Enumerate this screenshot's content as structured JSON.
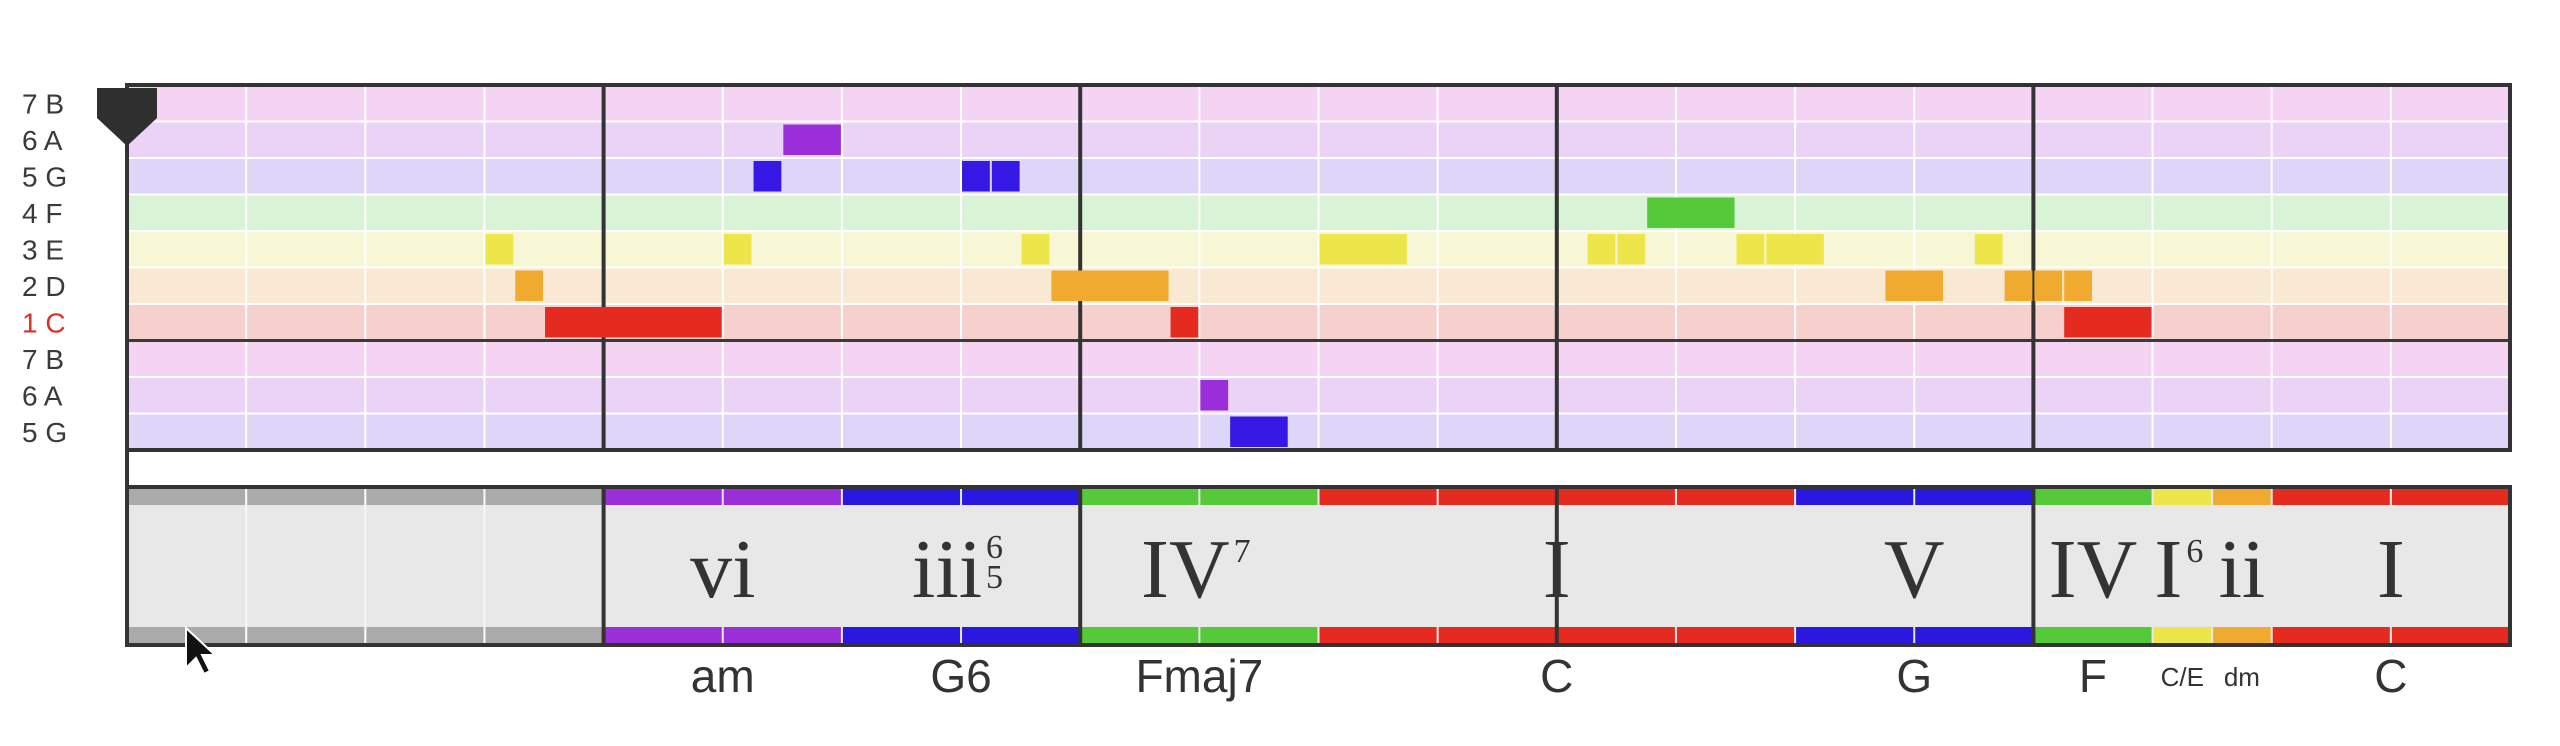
{
  "rows": [
    {
      "label": "7 B",
      "color": "#f5d3f3",
      "tonic": false
    },
    {
      "label": "6 A",
      "color": "#ebd3f6",
      "tonic": false
    },
    {
      "label": "5 G",
      "color": "#ddd6f8",
      "tonic": false
    },
    {
      "label": "4 F",
      "color": "#d8f3d6",
      "tonic": false
    },
    {
      "label": "3 E",
      "color": "#f8f7d5",
      "tonic": false
    },
    {
      "label": "2 D",
      "color": "#f9e9d3",
      "tonic": false
    },
    {
      "label": "1 C",
      "color": "#f6d0cd",
      "tonic": true
    },
    {
      "label": "7 B",
      "color": "#f5d3f3",
      "tonic": false
    },
    {
      "label": "6 A",
      "color": "#ebd3f6",
      "tonic": false
    },
    {
      "label": "5 G",
      "color": "#ddd6f8",
      "tonic": false
    }
  ],
  "timeline": {
    "measures": 5,
    "beats_per_measure": 4
  },
  "note_colors": {
    "1": "#e52b20",
    "2": "#f0aa30",
    "3": "#ece64a",
    "4": "#55c93a",
    "5": "#3518e4",
    "6": "#9a2ed8",
    "7": "#d24ad0"
  },
  "notes": [
    {
      "row": 4,
      "start": 3.0,
      "dur": 0.25,
      "degree": 3
    },
    {
      "row": 5,
      "start": 3.25,
      "dur": 0.25,
      "degree": 2
    },
    {
      "row": 6,
      "start": 3.5,
      "dur": 1.5,
      "degree": 1
    },
    {
      "row": 4,
      "start": 5.0,
      "dur": 0.25,
      "degree": 3
    },
    {
      "row": 2,
      "start": 5.25,
      "dur": 0.25,
      "degree": 5
    },
    {
      "row": 1,
      "start": 5.5,
      "dur": 0.5,
      "degree": 6
    },
    {
      "row": 2,
      "start": 7.0,
      "dur": 0.25,
      "degree": 5
    },
    {
      "row": 2,
      "start": 7.25,
      "dur": 0.25,
      "degree": 5
    },
    {
      "row": 4,
      "start": 7.5,
      "dur": 0.25,
      "degree": 3
    },
    {
      "row": 5,
      "start": 7.75,
      "dur": 1.0,
      "degree": 2
    },
    {
      "row": 6,
      "start": 8.75,
      "dur": 0.25,
      "degree": 1
    },
    {
      "row": 8,
      "start": 9.0,
      "dur": 0.25,
      "degree": 6
    },
    {
      "row": 9,
      "start": 9.25,
      "dur": 0.5,
      "degree": 5
    },
    {
      "row": 4,
      "start": 10.0,
      "dur": 0.75,
      "degree": 3
    },
    {
      "row": 4,
      "start": 12.25,
      "dur": 0.25,
      "degree": 3
    },
    {
      "row": 4,
      "start": 12.5,
      "dur": 0.25,
      "degree": 3
    },
    {
      "row": 3,
      "start": 12.75,
      "dur": 0.75,
      "degree": 4
    },
    {
      "row": 4,
      "start": 13.5,
      "dur": 0.25,
      "degree": 3
    },
    {
      "row": 4,
      "start": 13.75,
      "dur": 0.5,
      "degree": 3
    },
    {
      "row": 5,
      "start": 14.75,
      "dur": 0.5,
      "degree": 2
    },
    {
      "row": 4,
      "start": 15.5,
      "dur": 0.25,
      "degree": 3
    },
    {
      "row": 5,
      "start": 15.75,
      "dur": 0.25,
      "degree": 2
    },
    {
      "row": 5,
      "start": 16.0,
      "dur": 0.25,
      "degree": 2
    },
    {
      "row": 5,
      "start": 16.25,
      "dur": 0.25,
      "degree": 2
    },
    {
      "row": 6,
      "start": 16.25,
      "dur": 0.75,
      "degree": 1
    }
  ],
  "chords": [
    {
      "start": 0,
      "dur": 4,
      "numeral": "",
      "sup": "",
      "name": "",
      "name_small": false,
      "color": "#aaaaaa"
    },
    {
      "start": 4,
      "dur": 2,
      "numeral": "vi",
      "sup": "",
      "name": "am",
      "name_small": false,
      "color": "#9a2ed8"
    },
    {
      "start": 6,
      "dur": 2,
      "numeral": "iii",
      "sup": "6 5",
      "name": "G6",
      "name_small": false,
      "color": "#2a18e0"
    },
    {
      "start": 8,
      "dur": 2,
      "numeral": "IV",
      "sup": "7",
      "name": "Fmaj7",
      "name_small": false,
      "color": "#55c93a"
    },
    {
      "start": 10,
      "dur": 4,
      "numeral": "I",
      "sup": "",
      "name": "C",
      "name_small": false,
      "color": "#e52b20"
    },
    {
      "start": 14,
      "dur": 2,
      "numeral": "V",
      "sup": "",
      "name": "G",
      "name_small": false,
      "color": "#2a18e0"
    },
    {
      "start": 16,
      "dur": 1,
      "numeral": "IV",
      "sup": "",
      "name": "F",
      "name_small": false,
      "color": "#55c93a"
    },
    {
      "start": 17,
      "dur": 0.5,
      "numeral": "I",
      "sup": "6",
      "name": "C/E",
      "name_small": true,
      "color": "#ece64a"
    },
    {
      "start": 17.5,
      "dur": 0.5,
      "numeral": "ii",
      "sup": "",
      "name": "dm",
      "name_small": true,
      "color": "#f0aa30"
    },
    {
      "start": 18,
      "dur": 2,
      "numeral": "I",
      "sup": "",
      "name": "C",
      "name_small": false,
      "color": "#e52b20"
    }
  ]
}
